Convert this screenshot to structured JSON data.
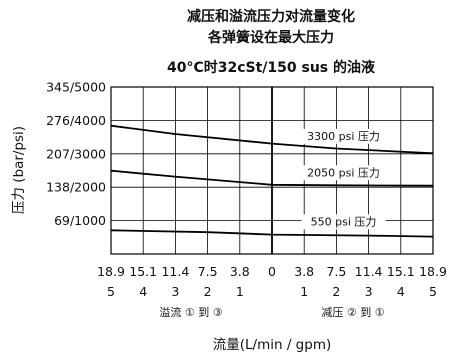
{
  "chart_data": {
    "type": "line",
    "title_lines": [
      "减压和溢流压力对流量变化",
      "各弹簧设在最大压力"
    ],
    "subtitle": "40°C时32cSt/150 sus 的油液",
    "xlabel": "流量(L/min / gpm)",
    "ylabel": "压力 (bar/psi)",
    "x_ticks": [
      {
        "top": "18.9",
        "bottom": "5"
      },
      {
        "top": "15.1",
        "bottom": "4"
      },
      {
        "top": "11.4",
        "bottom": "3"
      },
      {
        "top": "7.5",
        "bottom": "2"
      },
      {
        "top": "3.8",
        "bottom": "1"
      },
      {
        "top": "0",
        "bottom": ""
      },
      {
        "top": "3.8",
        "bottom": "1"
      },
      {
        "top": "7.5",
        "bottom": "2"
      },
      {
        "top": "11.4",
        "bottom": "3"
      },
      {
        "top": "15.1",
        "bottom": "4"
      },
      {
        "top": "18.9",
        "bottom": "5"
      }
    ],
    "x_range_lpm": [
      -18.9,
      18.9
    ],
    "y_ticks": [
      "69/1000",
      "138/2000",
      "207/3000",
      "276/4000",
      "345/5000"
    ],
    "y_tick_values_bar": [
      69,
      138,
      207,
      276,
      345
    ],
    "ylim_bar": [
      0,
      345
    ],
    "section_labels": [
      "溢流 ① 到 ③",
      "减压 ② 到 ①"
    ],
    "grid": true,
    "series": [
      {
        "name": "3300 psi 压力",
        "x": [
          -18.9,
          -11.4,
          0,
          7.5,
          18.9
        ],
        "y": [
          265,
          248,
          228,
          218,
          208
        ]
      },
      {
        "name": "2050 psi 压力",
        "x": [
          -18.9,
          -11.4,
          0,
          7.5,
          18.9
        ],
        "y": [
          172,
          160,
          143,
          142,
          141
        ]
      },
      {
        "name": "550 psi 压力",
        "x": [
          -18.9,
          -7.5,
          0,
          11.4,
          18.9
        ],
        "y": [
          49,
          45,
          40,
          38,
          36
        ]
      }
    ]
  }
}
